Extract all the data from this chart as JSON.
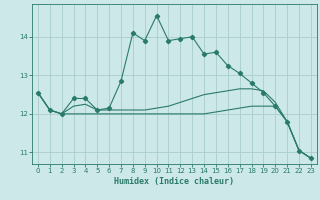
{
  "xlabel": "Humidex (Indice chaleur)",
  "bg_color": "#cce8e8",
  "grid_color": "#aacccc",
  "line_color": "#2a7a6a",
  "xlim": [
    -0.5,
    23.5
  ],
  "ylim": [
    10.7,
    14.85
  ],
  "yticks": [
    11,
    12,
    13,
    14
  ],
  "xticks": [
    0,
    1,
    2,
    3,
    4,
    5,
    6,
    7,
    8,
    9,
    10,
    11,
    12,
    13,
    14,
    15,
    16,
    17,
    18,
    19,
    20,
    21,
    22,
    23
  ],
  "curve1_x": [
    0,
    1,
    2,
    3,
    4,
    5,
    6,
    7,
    8,
    9,
    10,
    11,
    12,
    13,
    14,
    15,
    16,
    17,
    18,
    19,
    20,
    21,
    22,
    23
  ],
  "curve1_y": [
    12.55,
    12.1,
    12.0,
    12.4,
    12.4,
    12.1,
    12.15,
    12.85,
    14.1,
    13.9,
    14.55,
    13.9,
    13.95,
    14.0,
    13.55,
    13.6,
    13.25,
    13.05,
    12.8,
    12.55,
    12.2,
    11.8,
    11.05,
    10.85
  ],
  "curve2_x": [
    0,
    1,
    2,
    3,
    4,
    5,
    6,
    7,
    8,
    9,
    10,
    11,
    12,
    13,
    14,
    15,
    16,
    17,
    18,
    19,
    20,
    21,
    22,
    23
  ],
  "curve2_y": [
    12.55,
    12.1,
    12.0,
    12.2,
    12.25,
    12.1,
    12.1,
    12.1,
    12.1,
    12.1,
    12.15,
    12.2,
    12.3,
    12.4,
    12.5,
    12.55,
    12.6,
    12.65,
    12.65,
    12.6,
    12.3,
    11.8,
    11.05,
    10.85
  ],
  "curve3_x": [
    0,
    1,
    2,
    3,
    4,
    5,
    6,
    7,
    8,
    9,
    10,
    11,
    12,
    13,
    14,
    15,
    16,
    17,
    18,
    19,
    20,
    21,
    22,
    23
  ],
  "curve3_y": [
    12.55,
    12.1,
    12.0,
    12.0,
    12.0,
    12.0,
    12.0,
    12.0,
    12.0,
    12.0,
    12.0,
    12.0,
    12.0,
    12.0,
    12.0,
    12.05,
    12.1,
    12.15,
    12.2,
    12.2,
    12.2,
    11.8,
    11.05,
    10.85
  ]
}
